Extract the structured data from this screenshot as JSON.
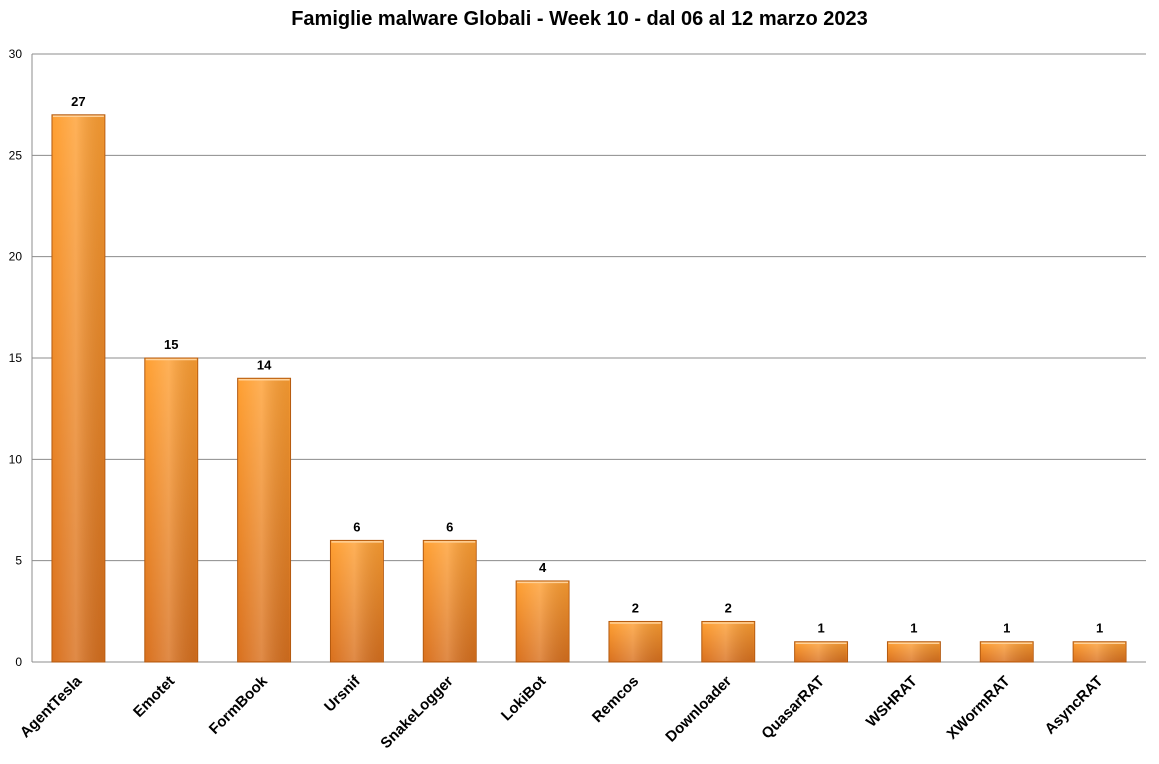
{
  "chart_data": {
    "type": "bar",
    "title": "Famiglie malware Globali - Week 10 - dal 06 al 12 marzo 2023",
    "xlabel": "",
    "ylabel": "",
    "categories": [
      "AgentTesla",
      "Emotet",
      "FormBook",
      "Ursnif",
      "SnakeLogger",
      "LokiBot",
      "Remcos",
      "Downloader",
      "QuasarRAT",
      "WSHRAT",
      "XWormRAT",
      "AsyncRAT"
    ],
    "values": [
      27,
      15,
      14,
      6,
      6,
      4,
      2,
      2,
      1,
      1,
      1,
      1
    ],
    "ylim": [
      0,
      30
    ],
    "yticks": [
      0,
      5,
      10,
      15,
      20,
      25,
      30
    ],
    "grid": true,
    "legend": "none",
    "data_labels": true,
    "colors": {
      "bar_light": "#ffa033",
      "bar_dark": "#d9711f",
      "bar_edge": "#b35a10",
      "grid": "#8c8c8c",
      "axis": "#8c8c8c"
    }
  }
}
